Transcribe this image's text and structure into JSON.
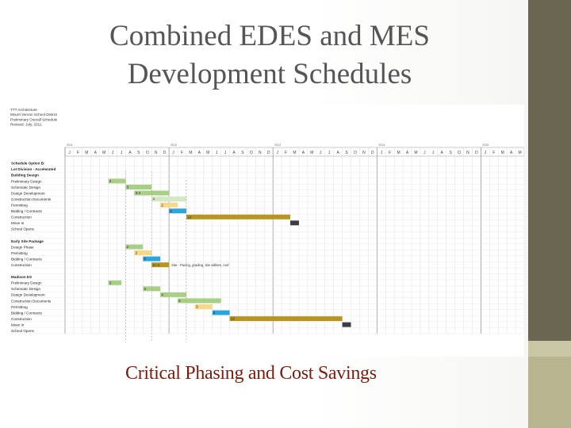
{
  "slide": {
    "title_line1": "Combined EDES and MES",
    "title_line2": "Development Schedules",
    "caption": "Critical Phasing and Cost Savings"
  },
  "colors": {
    "title": "#555555",
    "caption": "#7a1d0e",
    "sidebar_dark": "#6b6651",
    "sidebar_light": "#b7b48f",
    "green": "#a9cf86",
    "light_green": "#d5e8c4",
    "yellow": "#f7d889",
    "blue": "#2aa6dc",
    "gold": "#b8951f",
    "dark": "#3c3c46"
  },
  "chart_data": {
    "type": "table",
    "header_lines": [
      "TTT Architecture",
      "Mount Vernon School District",
      "Preliminary Overall Schedule",
      "Revised: July, 2011"
    ],
    "years": [
      "2011",
      "2012",
      "2013",
      "2014",
      "2015"
    ],
    "months": [
      "J",
      "F",
      "M",
      "A",
      "M",
      "J",
      "J",
      "A",
      "S",
      "O",
      "N",
      "D",
      "J",
      "F",
      "M",
      "A",
      "M",
      "J",
      "J",
      "A",
      "S",
      "O",
      "N",
      "D",
      "J",
      "F",
      "M",
      "A",
      "M",
      "J",
      "J",
      "A",
      "S",
      "O",
      "N",
      "D",
      "J",
      "F",
      "M",
      "A",
      "M",
      "J",
      "J",
      "A",
      "S",
      "O",
      "N",
      "D",
      "J",
      "F",
      "M",
      "A",
      "M"
    ],
    "annotation": "Site - Paving, grading, site utilities, roof",
    "rows": [
      {
        "label": "Schedule Option B:",
        "bold": true
      },
      {
        "label": "Lot Division - Accelerated",
        "bold": true
      },
      {
        "label": "Building Design",
        "bold": true
      },
      {
        "label": "Preliminary Design",
        "bar": {
          "s": 5,
          "d": 2,
          "c": "green",
          "n": "2"
        }
      },
      {
        "label": "Schematic Design",
        "bar": {
          "s": 7,
          "d": 3,
          "c": "green",
          "n": "3"
        }
      },
      {
        "label": "Design Development",
        "bar": {
          "s": 8,
          "d": 4,
          "c": "green",
          "n": "3-4"
        }
      },
      {
        "label": "Construction Documents",
        "bar": {
          "s": 10,
          "d": 4,
          "c": "light_green",
          "n": "4"
        }
      },
      {
        "label": "Permitting",
        "bar": {
          "s": 11,
          "d": 2,
          "c": "yellow",
          "n": "2"
        }
      },
      {
        "label": "Bidding / Contracts",
        "bar": {
          "s": 12,
          "d": 2,
          "c": "blue",
          "n": "2"
        }
      },
      {
        "label": "Construction",
        "bar": {
          "s": 14,
          "d": 12,
          "c": "gold",
          "n": "12"
        }
      },
      {
        "label": "Move In",
        "bar": {
          "s": 26,
          "d": 1,
          "c": "dark",
          "n": ""
        }
      },
      {
        "label": "School Opens"
      },
      {
        "label": ""
      },
      {
        "label": "Early Site Package",
        "bold": true
      },
      {
        "label": "Design Phase",
        "bar": {
          "s": 7,
          "d": 2,
          "c": "green",
          "n": "2"
        }
      },
      {
        "label": "Permitting",
        "bar": {
          "s": 8,
          "d": 2,
          "c": "yellow",
          "n": "2"
        }
      },
      {
        "label": "Bidding / Contracts",
        "bar": {
          "s": 9,
          "d": 2,
          "c": "blue",
          "n": "2"
        }
      },
      {
        "label": "Construction",
        "bar": {
          "s": 10,
          "d": 2,
          "c": "gold",
          "n": "3 / 4"
        }
      },
      {
        "label": ""
      },
      {
        "label": "Madison ES",
        "bold": true
      },
      {
        "label": "Preliminary Design",
        "bar": {
          "s": 5,
          "d": 1.5,
          "c": "green",
          "n": "2"
        }
      },
      {
        "label": "Schematic Design",
        "bar": {
          "s": 9,
          "d": 2,
          "c": "green",
          "n": "3"
        }
      },
      {
        "label": "Design Development",
        "bar": {
          "s": 11,
          "d": 3,
          "c": "green",
          "n": "4"
        }
      },
      {
        "label": "Construction Documents",
        "bar": {
          "s": 13,
          "d": 5,
          "c": "green",
          "n": "6"
        }
      },
      {
        "label": "Permitting",
        "bar": {
          "s": 15,
          "d": 2,
          "c": "yellow",
          "n": "3"
        }
      },
      {
        "label": "Bidding / Contracts",
        "bar": {
          "s": 17,
          "d": 2,
          "c": "blue",
          "n": "2"
        }
      },
      {
        "label": "Construction",
        "bar": {
          "s": 19,
          "d": 13,
          "c": "gold",
          "n": "13"
        }
      },
      {
        "label": "Move In",
        "bar": {
          "s": 32,
          "d": 1,
          "c": "dark",
          "n": ""
        }
      },
      {
        "label": "School Opens"
      }
    ]
  }
}
